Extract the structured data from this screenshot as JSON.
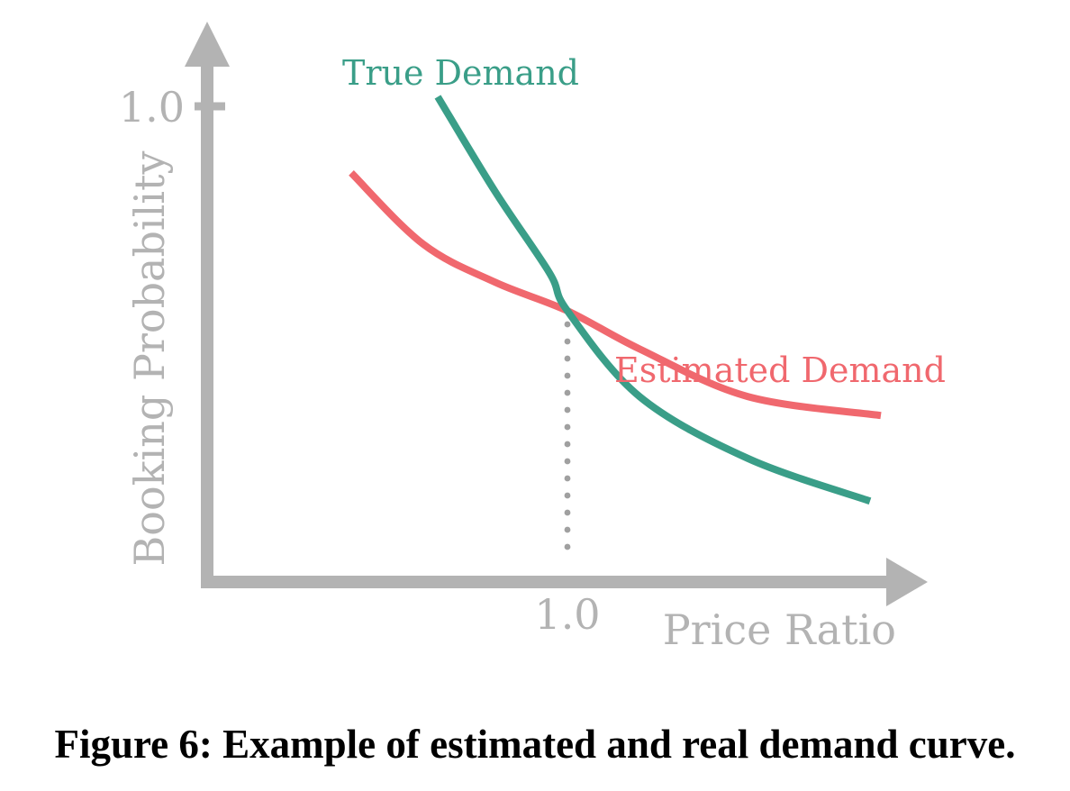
{
  "chart_data": {
    "type": "line",
    "title": "",
    "xlabel": "Price Ratio",
    "ylabel": "Booking Probability",
    "x_ticks": [
      "1.0"
    ],
    "y_ticks": [
      "1.0"
    ],
    "xlim": [
      0,
      2
    ],
    "ylim": [
      0,
      1.1
    ],
    "grid": false,
    "legend": "inline labels",
    "reference_line": {
      "x": 1.0,
      "style": "dotted"
    },
    "series": [
      {
        "name": "True Demand",
        "color": "#3a9e88",
        "x": [
          0.64,
          0.8,
          0.95,
          1.0,
          1.2,
          1.5,
          1.84
        ],
        "y": [
          1.02,
          0.82,
          0.65,
          0.57,
          0.39,
          0.26,
          0.17
        ]
      },
      {
        "name": "Estimated Demand",
        "color": "#f0686e",
        "x": [
          0.4,
          0.6,
          0.8,
          1.0,
          1.2,
          1.5,
          1.87
        ],
        "y": [
          0.86,
          0.71,
          0.63,
          0.57,
          0.49,
          0.39,
          0.35
        ]
      }
    ],
    "axis_color": "#b3b3b3",
    "reference_color": "#a0a0a0"
  },
  "caption": "Figure 6: Example of estimated and real demand curve."
}
